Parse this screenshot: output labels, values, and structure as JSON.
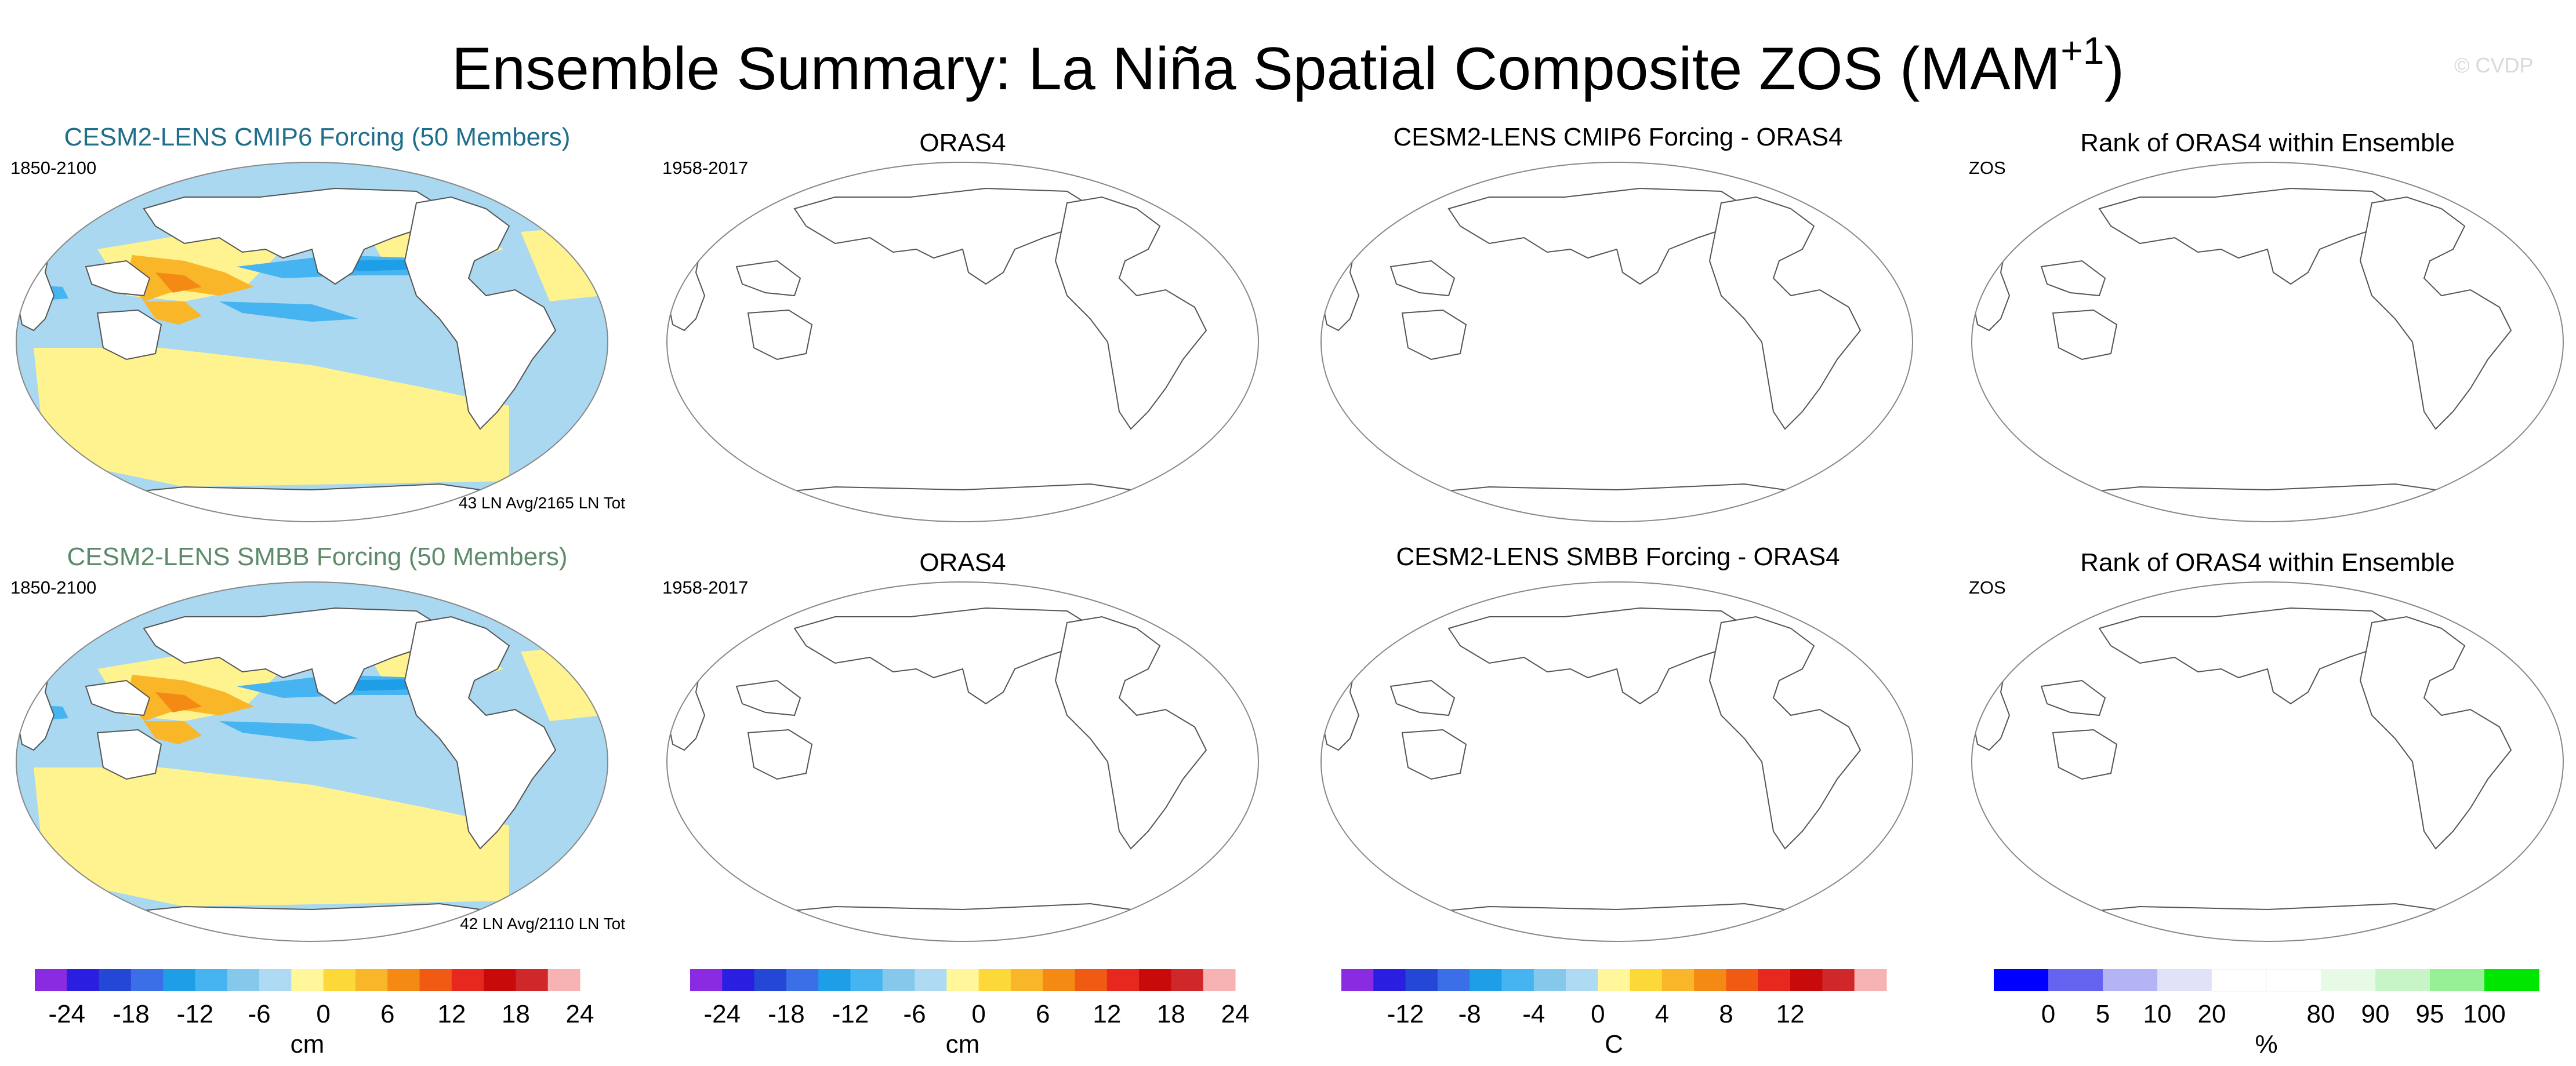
{
  "title": {
    "main": "Ensemble Summary: La Niña Spatial Composite ZOS (MAM",
    "superscript": "+1",
    "close": ")"
  },
  "watermark": "© CVDP",
  "colors": {
    "cmip6_title": "#1f6e8c",
    "smbb_title": "#5d8a6a",
    "ocean_pos": "#fff38f",
    "ocean_neg": "#a9d8f0",
    "outline": "#555555"
  },
  "panels": [
    {
      "title": "CESM2-LENS CMIP6 Forcing (50 Members)",
      "subtitle": "1850-2100",
      "note": "43 LN Avg/2165 LN Tot",
      "filled": true,
      "title_color": "cmip6"
    },
    {
      "title": "ORAS4",
      "subtitle": "1958-2017",
      "note": "",
      "filled": false
    },
    {
      "title": "CESM2-LENS CMIP6 Forcing - ORAS4",
      "subtitle": "",
      "note": "",
      "filled": false
    },
    {
      "title": "Rank of ORAS4 within Ensemble",
      "subtitle": "ZOS",
      "note": "",
      "filled": false
    },
    {
      "title": "CESM2-LENS SMBB Forcing (50 Members)",
      "subtitle": "1850-2100",
      "note": "42 LN Avg/2110 LN Tot",
      "filled": true,
      "title_color": "smbb"
    },
    {
      "title": "ORAS4",
      "subtitle": "1958-2017",
      "note": "",
      "filled": false
    },
    {
      "title": "CESM2-LENS SMBB Forcing - ORAS4",
      "subtitle": "",
      "note": "",
      "filled": false
    },
    {
      "title": "Rank of ORAS4 within Ensemble",
      "subtitle": "ZOS",
      "note": "",
      "filled": false
    }
  ],
  "chart_data": [
    {
      "type": "colorbar",
      "label": "cm",
      "colors": [
        "#8a2be2",
        "#2a1fe0",
        "#2547d6",
        "#3a6fe8",
        "#1e9ee6",
        "#45b4f0",
        "#86c7ec",
        "#aedbf3",
        "#fff79a",
        "#fcd838",
        "#f8b628",
        "#f48a14",
        "#f05a12",
        "#e6281e",
        "#c80a0a",
        "#d0282a",
        "#f7b3b3"
      ],
      "tick_labels": [
        "-24",
        "-18",
        "-12",
        "-6",
        "0",
        "6",
        "12",
        "18",
        "24"
      ],
      "tick_positions": [
        1,
        3,
        5,
        7,
        9,
        11,
        13,
        15,
        17
      ]
    },
    {
      "type": "colorbar",
      "label": "cm",
      "colors": [
        "#8a2be2",
        "#2a1fe0",
        "#2547d6",
        "#3a6fe8",
        "#1e9ee6",
        "#45b4f0",
        "#86c7ec",
        "#aedbf3",
        "#fff79a",
        "#fcd838",
        "#f8b628",
        "#f48a14",
        "#f05a12",
        "#e6281e",
        "#c80a0a",
        "#d0282a",
        "#f7b3b3"
      ],
      "tick_labels": [
        "-24",
        "-18",
        "-12",
        "-6",
        "0",
        "6",
        "12",
        "18",
        "24"
      ],
      "tick_positions": [
        1,
        3,
        5,
        7,
        9,
        11,
        13,
        15,
        17
      ]
    },
    {
      "type": "colorbar",
      "label": "C",
      "colors": [
        "#8a2be2",
        "#2a1fe0",
        "#2547d6",
        "#3a6fe8",
        "#1e9ee6",
        "#45b4f0",
        "#86c7ec",
        "#aedbf3",
        "#fff79a",
        "#fcd838",
        "#f8b628",
        "#f48a14",
        "#f05a12",
        "#e6281e",
        "#c80a0a",
        "#d0282a",
        "#f7b3b3"
      ],
      "tick_labels": [
        "-12",
        "-8",
        "-4",
        "0",
        "4",
        "8",
        "12"
      ],
      "tick_positions": [
        2,
        4,
        6,
        8,
        10,
        12,
        14
      ]
    },
    {
      "type": "colorbar",
      "label": "%",
      "colors": [
        "#0000ff",
        "#6464f0",
        "#b4b4f5",
        "#e1e1f8",
        "#ffffff",
        "#ffffff",
        "#e6fae6",
        "#c8f5c8",
        "#96f096",
        "#00e600"
      ],
      "tick_labels": [
        "0",
        "5",
        "10",
        "20",
        "80",
        "90",
        "95",
        "100"
      ],
      "tick_positions": [
        1,
        2,
        3,
        4,
        6,
        7,
        8,
        9
      ]
    }
  ]
}
